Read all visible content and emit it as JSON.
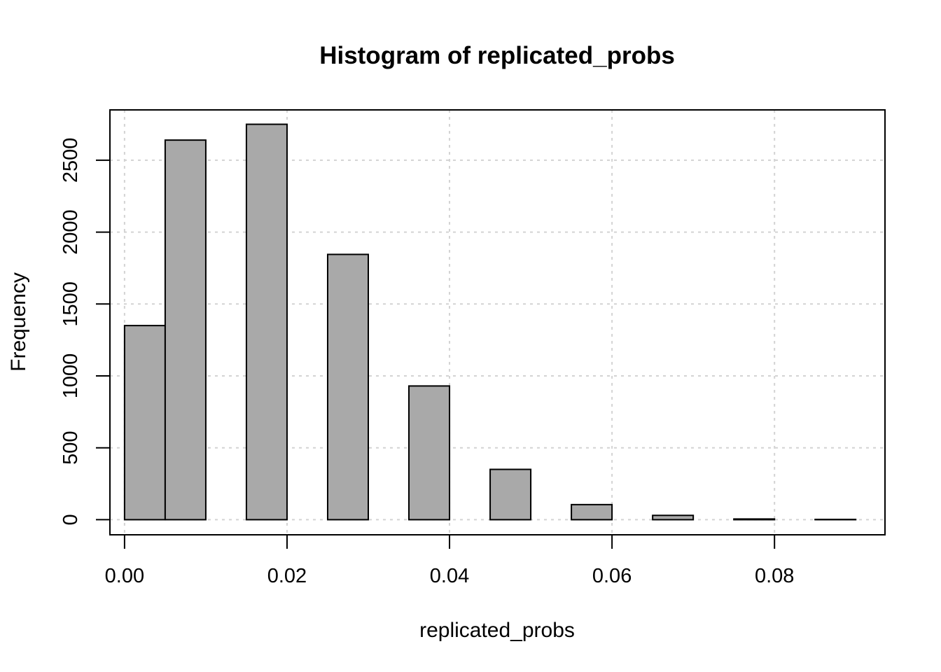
{
  "chart_data": {
    "type": "bar",
    "title": "Histogram of replicated_probs",
    "xlabel": "replicated_probs",
    "ylabel": "Frequency",
    "bin_edges": [
      0.0,
      0.005,
      0.01,
      0.015,
      0.02,
      0.025,
      0.03,
      0.035,
      0.04,
      0.045,
      0.05,
      0.055,
      0.06,
      0.065,
      0.07,
      0.075,
      0.08,
      0.085,
      0.09
    ],
    "values": [
      1350,
      2640,
      0,
      2750,
      0,
      1845,
      0,
      930,
      0,
      350,
      0,
      105,
      0,
      30,
      0,
      5,
      0,
      2
    ],
    "xlim": [
      -0.0018,
      0.0936
    ],
    "ylim": [
      -105,
      2850
    ],
    "x_ticks": [
      0.0,
      0.02,
      0.04,
      0.06,
      0.08
    ],
    "x_tick_labels": [
      "0.00",
      "0.02",
      "0.04",
      "0.06",
      "0.08"
    ],
    "y_ticks": [
      0,
      500,
      1000,
      1500,
      2000,
      2500
    ],
    "y_tick_labels": [
      "0",
      "500",
      "1000",
      "1500",
      "2000",
      "2500"
    ],
    "grid": true,
    "bar_color": "#a9a9a9",
    "grid_color": "#d3d3d3"
  }
}
